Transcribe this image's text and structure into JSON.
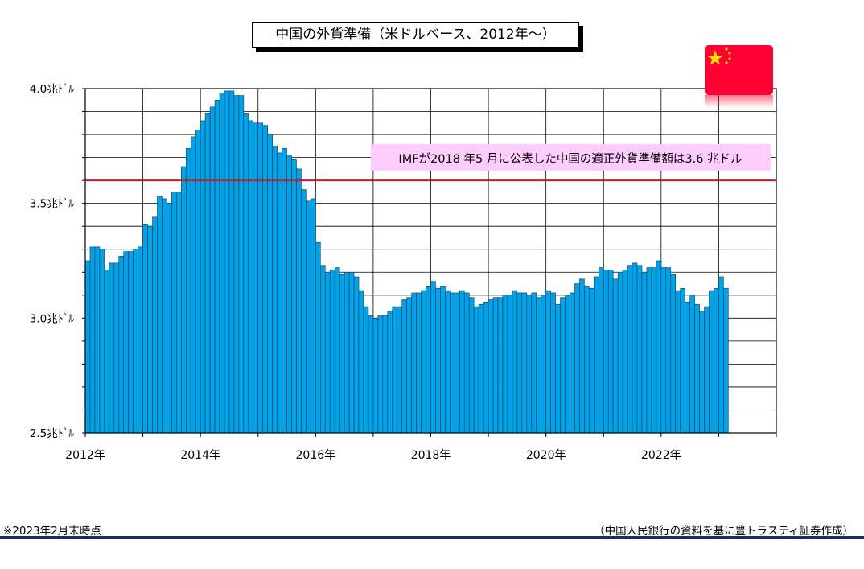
{
  "title": "中国の外貨準備（米ドルベース、2012年～）",
  "footnote": "※2023年2月末時点",
  "source": "（中国人民銀行の資料を基に豊トラスティ証券作成）",
  "chart_data": {
    "type": "bar",
    "title": "中国の外貨準備（米ドルベース、2012年～）",
    "unit": "兆ﾄﾞﾙ",
    "ylim": [
      2.5,
      4.0
    ],
    "y_ticks": [
      "2.5兆ﾄﾞﾙ",
      "3.0兆ﾄﾞﾙ",
      "3.5兆ﾄﾞﾙ",
      "4.0兆ﾄﾞﾙ"
    ],
    "y_tick_values": [
      2.5,
      3.0,
      3.5,
      4.0
    ],
    "x_tick_labels": [
      "2012年",
      "2014年",
      "2016年",
      "2018年",
      "2020年",
      "2022年"
    ],
    "x_tick_index": [
      0,
      24,
      48,
      72,
      96,
      120
    ],
    "x_grid_every": 12,
    "n_slots": 144,
    "bar_color": "#00a2e8",
    "grid": true,
    "reference_line": {
      "value": 3.6,
      "color": "#e01020",
      "label": "IMFが2018 年5 月に公表した中国の適正外貨準備額は3.6 兆ドル",
      "label_bg": "#ffccff"
    },
    "values": [
      3.25,
      3.31,
      3.31,
      3.3,
      3.21,
      3.24,
      3.24,
      3.27,
      3.29,
      3.29,
      3.3,
      3.31,
      3.41,
      3.4,
      3.44,
      3.53,
      3.52,
      3.5,
      3.55,
      3.55,
      3.66,
      3.74,
      3.79,
      3.82,
      3.86,
      3.89,
      3.92,
      3.95,
      3.98,
      3.99,
      3.99,
      3.97,
      3.97,
      3.89,
      3.86,
      3.85,
      3.85,
      3.84,
      3.8,
      3.75,
      3.72,
      3.74,
      3.71,
      3.69,
      3.65,
      3.56,
      3.51,
      3.52,
      3.33,
      3.23,
      3.2,
      3.21,
      3.22,
      3.19,
      3.2,
      3.2,
      3.18,
      3.12,
      3.05,
      3.01,
      3.0,
      3.01,
      3.01,
      3.03,
      3.05,
      3.05,
      3.08,
      3.09,
      3.11,
      3.11,
      3.12,
      3.14,
      3.16,
      3.13,
      3.14,
      3.12,
      3.11,
      3.11,
      3.12,
      3.11,
      3.09,
      3.05,
      3.06,
      3.07,
      3.08,
      3.09,
      3.09,
      3.1,
      3.1,
      3.12,
      3.11,
      3.11,
      3.1,
      3.11,
      3.09,
      3.1,
      3.12,
      3.11,
      3.06,
      3.09,
      3.1,
      3.11,
      3.15,
      3.17,
      3.14,
      3.13,
      3.18,
      3.22,
      3.21,
      3.21,
      3.17,
      3.2,
      3.21,
      3.23,
      3.24,
      3.23,
      3.2,
      3.22,
      3.22,
      3.25,
      3.22,
      3.22,
      3.19,
      3.12,
      3.13,
      3.07,
      3.1,
      3.06,
      3.03,
      3.05,
      3.12,
      3.13,
      3.18,
      3.13
    ]
  },
  "flag": {
    "name": "china-flag-icon",
    "red": "#ff0033",
    "star": "#ffde00"
  }
}
